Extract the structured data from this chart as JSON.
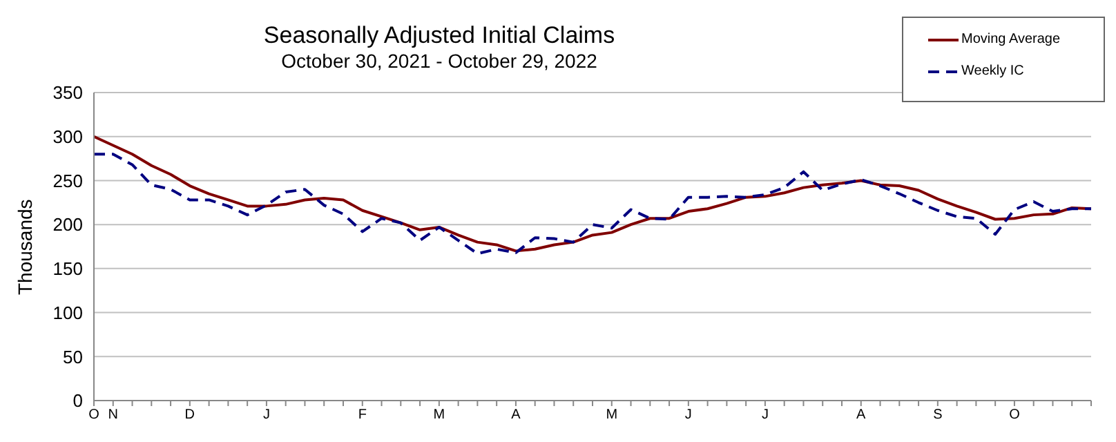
{
  "chart_data": {
    "type": "line",
    "title": "Seasonally Adjusted Initial Claims",
    "subtitle": "October 30, 2021 - October 29, 2022",
    "ylabel": "Thousands",
    "categories": [
      "O",
      "N",
      null,
      null,
      null,
      "D",
      null,
      null,
      null,
      "J",
      null,
      null,
      null,
      null,
      "F",
      null,
      null,
      null,
      "M",
      null,
      null,
      null,
      "A",
      null,
      null,
      null,
      null,
      "M",
      null,
      null,
      null,
      "J",
      null,
      null,
      null,
      "J",
      null,
      null,
      null,
      null,
      "A",
      null,
      null,
      null,
      "S",
      null,
      null,
      null,
      "O",
      null,
      null,
      null,
      null
    ],
    "series": [
      {
        "name": "Moving Average",
        "color": "#800000",
        "line_style": "solid",
        "values": [
          300,
          290,
          280,
          267,
          257,
          244,
          235,
          228,
          221,
          221,
          223,
          228,
          230,
          228,
          216,
          209,
          202,
          194,
          197,
          188,
          180,
          177,
          170,
          172,
          177,
          180,
          188,
          191,
          200,
          207,
          207,
          215,
          218,
          224,
          231,
          232,
          236,
          242,
          245,
          247,
          250,
          245,
          244,
          239,
          229,
          221,
          214,
          206,
          207,
          211,
          212,
          219,
          218
        ]
      },
      {
        "name": "Weekly IC",
        "color": "#000080",
        "line_style": "dashed",
        "values": [
          280,
          280,
          268,
          245,
          240,
          228,
          228,
          221,
          211,
          222,
          237,
          240,
          222,
          212,
          192,
          207,
          202,
          182,
          197,
          182,
          167,
          172,
          168,
          185,
          184,
          180,
          200,
          196,
          217,
          207,
          206,
          231,
          231,
          232,
          231,
          234,
          242,
          260,
          239,
          246,
          251,
          244,
          235,
          225,
          216,
          209,
          207,
          189,
          217,
          226,
          215,
          218,
          218
        ]
      }
    ],
    "ylim": [
      0,
      350
    ],
    "yticks": [
      0,
      50,
      100,
      150,
      200,
      250,
      300,
      350
    ],
    "grid": "y",
    "legend": "top right",
    "marker": "none"
  }
}
